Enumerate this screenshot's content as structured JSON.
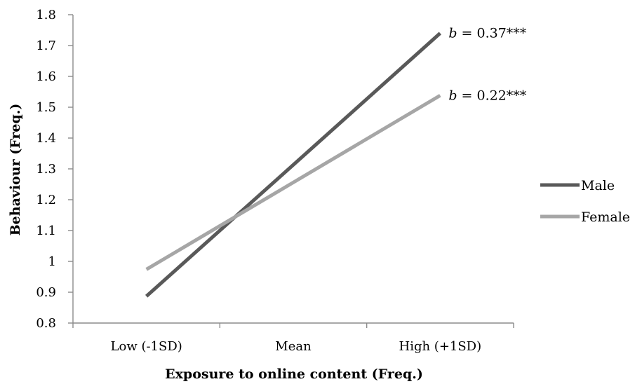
{
  "chart_data": {
    "type": "line",
    "categories": [
      "Low (-1SD)",
      "Mean",
      "High (+1SD)"
    ],
    "series": [
      {
        "name": "Male",
        "color": "#595959",
        "values": [
          0.887,
          1.313,
          1.74
        ],
        "annotation": {
          "prefix": "b",
          "text": " = 0.37***"
        }
      },
      {
        "name": "Female",
        "color": "#a6a6a6",
        "values": [
          0.974,
          1.256,
          1.538
        ],
        "annotation": {
          "prefix": "b",
          "text": " = 0.22***"
        }
      }
    ],
    "xlabel": "Exposure to online content (Freq.)",
    "ylabel": "Behaviour (Freq.)",
    "ylim": [
      0.8,
      1.8
    ],
    "yticks": [
      "0.8",
      "0.9",
      "1",
      "1.1",
      "1.2",
      "1.3",
      "1.4",
      "1.5",
      "1.6",
      "1.7",
      "1.8"
    ],
    "grid": false,
    "legend_position": "right"
  }
}
